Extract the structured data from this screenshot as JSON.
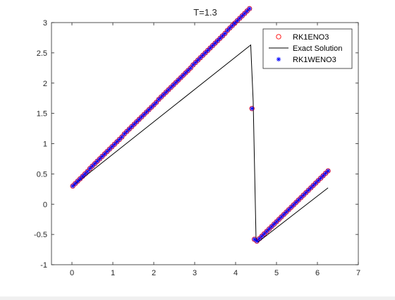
{
  "chart_data": {
    "type": "scatter",
    "title": "T=1.3",
    "xlabel": "",
    "ylabel": "",
    "xlim": [
      -0.5,
      7
    ],
    "ylim": [
      -1,
      3
    ],
    "xticks": [
      0,
      1,
      2,
      3,
      4,
      5,
      6,
      7
    ],
    "yticks": [
      -1,
      -0.5,
      0,
      0.5,
      1,
      1.5,
      2,
      2.5,
      3
    ],
    "xtick_labels": [
      "0",
      "1",
      "2",
      "3",
      "4",
      "5",
      "6",
      "7"
    ],
    "ytick_labels": [
      "-1",
      "-0.5",
      "0",
      "0.5",
      "1",
      "1.5",
      "2",
      "2.5",
      "3"
    ],
    "grid": false,
    "legend_position": "top-right",
    "series": [
      {
        "name": "RK1ENO3",
        "marker": "circle",
        "color": "#ff0000",
        "x": [
          0.02,
          0.08,
          0.14,
          0.2,
          0.26,
          0.32,
          0.38,
          0.44,
          0.5,
          0.56,
          0.62,
          0.68,
          0.74,
          0.8,
          0.86,
          0.92,
          0.98,
          1.04,
          1.1,
          1.16,
          1.22,
          1.28,
          1.34,
          1.4,
          1.46,
          1.52,
          1.58,
          1.64,
          1.7,
          1.76,
          1.82,
          1.88,
          1.94,
          2.0,
          2.06,
          2.12,
          2.18,
          2.24,
          2.3,
          2.36,
          2.42,
          2.48,
          2.54,
          2.6,
          2.66,
          2.72,
          2.78,
          2.84,
          2.9,
          2.96,
          3.02,
          3.08,
          3.14,
          3.2,
          3.26,
          3.32,
          3.38,
          3.44,
          3.5,
          3.56,
          3.62,
          3.68,
          3.74,
          3.8,
          3.86,
          3.92,
          3.98,
          4.04,
          4.1,
          4.16,
          4.22,
          4.28,
          4.34,
          4.4,
          4.46,
          4.52,
          4.58,
          4.64,
          4.7,
          4.76,
          4.82,
          4.88,
          4.94,
          5.0,
          5.06,
          5.12,
          5.18,
          5.24,
          5.3,
          5.36,
          5.42,
          5.48,
          5.54,
          5.6,
          5.66,
          5.72,
          5.78,
          5.84,
          5.9,
          5.96,
          6.02,
          6.08,
          6.14,
          6.2,
          6.26
        ],
        "y": [
          0.3,
          0.34,
          0.38,
          0.42,
          0.46,
          0.5,
          0.54,
          0.59,
          0.63,
          0.67,
          0.71,
          0.75,
          0.79,
          0.83,
          0.87,
          0.91,
          0.95,
          0.99,
          1.03,
          1.07,
          1.11,
          1.16,
          1.2,
          1.24,
          1.28,
          1.32,
          1.36,
          1.4,
          1.44,
          1.48,
          1.52,
          1.56,
          1.6,
          1.64,
          1.68,
          1.73,
          1.77,
          1.81,
          1.85,
          1.89,
          1.93,
          1.97,
          2.01,
          2.05,
          2.09,
          2.13,
          2.17,
          2.21,
          2.25,
          2.3,
          2.34,
          2.38,
          2.42,
          2.46,
          2.5,
          2.54,
          2.58,
          2.62,
          2.66,
          2.7,
          2.74,
          2.78,
          2.82,
          2.87,
          2.91,
          2.95,
          2.99,
          3.03,
          3.07,
          3.11,
          3.15,
          3.19,
          3.23,
          1.58,
          -0.58,
          -0.61,
          -0.57,
          -0.53,
          -0.49,
          -0.45,
          -0.41,
          -0.37,
          -0.33,
          -0.29,
          -0.25,
          -0.21,
          -0.17,
          -0.13,
          -0.09,
          -0.05,
          -0.01,
          0.03,
          0.07,
          0.11,
          0.15,
          0.19,
          0.23,
          0.27,
          0.31,
          0.35,
          0.39,
          0.43,
          0.47,
          0.51,
          0.55
        ]
      },
      {
        "name": "Exact Solution",
        "marker": "line",
        "color": "#000000",
        "x": [
          0.02,
          4.37,
          4.43,
          4.5,
          4.56,
          6.26
        ],
        "y": [
          0.3,
          2.63,
          1.7,
          -0.58,
          -0.62,
          0.27
        ]
      },
      {
        "name": "RK1WENO3",
        "marker": "asterisk",
        "color": "#0000ff",
        "x": [
          0.02,
          0.08,
          0.14,
          0.2,
          0.26,
          0.32,
          0.38,
          0.44,
          0.5,
          0.56,
          0.62,
          0.68,
          0.74,
          0.8,
          0.86,
          0.92,
          0.98,
          1.04,
          1.1,
          1.16,
          1.22,
          1.28,
          1.34,
          1.4,
          1.46,
          1.52,
          1.58,
          1.64,
          1.7,
          1.76,
          1.82,
          1.88,
          1.94,
          2.0,
          2.06,
          2.12,
          2.18,
          2.24,
          2.3,
          2.36,
          2.42,
          2.48,
          2.54,
          2.6,
          2.66,
          2.72,
          2.78,
          2.84,
          2.9,
          2.96,
          3.02,
          3.08,
          3.14,
          3.2,
          3.26,
          3.32,
          3.38,
          3.44,
          3.5,
          3.56,
          3.62,
          3.68,
          3.74,
          3.8,
          3.86,
          3.92,
          3.98,
          4.04,
          4.1,
          4.16,
          4.22,
          4.28,
          4.34,
          4.4,
          4.46,
          4.52,
          4.58,
          4.64,
          4.7,
          4.76,
          4.82,
          4.88,
          4.94,
          5.0,
          5.06,
          5.12,
          5.18,
          5.24,
          5.3,
          5.36,
          5.42,
          5.48,
          5.54,
          5.6,
          5.66,
          5.72,
          5.78,
          5.84,
          5.9,
          5.96,
          6.02,
          6.08,
          6.14,
          6.2,
          6.26
        ],
        "y": [
          0.3,
          0.34,
          0.38,
          0.42,
          0.46,
          0.5,
          0.54,
          0.59,
          0.63,
          0.67,
          0.71,
          0.75,
          0.79,
          0.83,
          0.87,
          0.91,
          0.95,
          0.99,
          1.03,
          1.07,
          1.11,
          1.16,
          1.2,
          1.24,
          1.28,
          1.32,
          1.36,
          1.4,
          1.44,
          1.48,
          1.52,
          1.56,
          1.6,
          1.64,
          1.68,
          1.73,
          1.77,
          1.81,
          1.85,
          1.89,
          1.93,
          1.97,
          2.01,
          2.05,
          2.09,
          2.13,
          2.17,
          2.21,
          2.25,
          2.3,
          2.34,
          2.38,
          2.42,
          2.46,
          2.5,
          2.54,
          2.58,
          2.62,
          2.66,
          2.7,
          2.74,
          2.78,
          2.82,
          2.87,
          2.91,
          2.95,
          2.99,
          3.03,
          3.07,
          3.11,
          3.15,
          3.19,
          3.23,
          1.58,
          -0.58,
          -0.61,
          -0.57,
          -0.53,
          -0.49,
          -0.45,
          -0.41,
          -0.37,
          -0.33,
          -0.29,
          -0.25,
          -0.21,
          -0.17,
          -0.13,
          -0.09,
          -0.05,
          -0.01,
          0.03,
          0.07,
          0.11,
          0.15,
          0.19,
          0.23,
          0.27,
          0.31,
          0.35,
          0.39,
          0.43,
          0.47,
          0.51,
          0.55
        ]
      }
    ]
  }
}
